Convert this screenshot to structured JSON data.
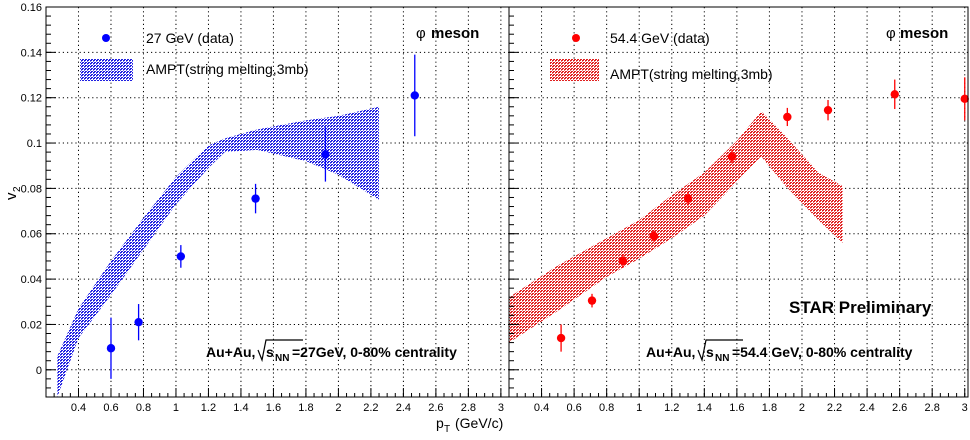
{
  "chart_data": [
    {
      "type": "scatter",
      "panel": "left",
      "ylabel_main": "v",
      "ylabel_sub": "2",
      "xlim": [
        0.2,
        3.05
      ],
      "ylim": [
        -0.012,
        0.16
      ],
      "x_ticks": [
        "0.4",
        "0.6",
        "0.8",
        "1",
        "1.2",
        "1.4",
        "1.6",
        "1.8",
        "2",
        "2.2",
        "2.4",
        "2.6",
        "2.8",
        "3"
      ],
      "y_ticks": [
        "0",
        "0.02",
        "0.04",
        "0.06",
        "0.08",
        "0.1",
        "0.12",
        "0.14",
        "0.16"
      ],
      "grid": true,
      "particle_label": "φ",
      "particle_word": "meson",
      "legend_data": "27 GeV (data)",
      "legend_band": "AMPT(string melting,3mb)",
      "system_label_left": "Au+Au,",
      "system_label_right": "=27GeV, 0-80% centrality",
      "sqrt_sub": "NN",
      "series": [
        {
          "name": "27 GeV (data)",
          "color": "#0000ff",
          "points": [
            {
              "x": 0.6,
              "y": 0.0095,
              "err": 0.0135
            },
            {
              "x": 0.77,
              "y": 0.021,
              "err": 0.008
            },
            {
              "x": 1.03,
              "y": 0.05,
              "err": 0.005
            },
            {
              "x": 1.49,
              "y": 0.0755,
              "err": 0.0065
            },
            {
              "x": 1.92,
              "y": 0.095,
              "err": 0.012
            },
            {
              "x": 2.47,
              "y": 0.121,
              "err": 0.018
            }
          ]
        },
        {
          "name": "AMPT(string melting,3mb)",
          "color": "#0000ff",
          "band_x": [
            0.27,
            0.4,
            0.6,
            0.8,
            1.0,
            1.2,
            1.3,
            1.5,
            1.8,
            2.0,
            2.25
          ],
          "band_upper": [
            0.006,
            0.027,
            0.048,
            0.067,
            0.085,
            0.099,
            0.102,
            0.106,
            0.11,
            0.112,
            0.116
          ],
          "band_lower": [
            -0.012,
            0.014,
            0.033,
            0.053,
            0.073,
            0.089,
            0.096,
            0.097,
            0.092,
            0.086,
            0.075
          ]
        }
      ]
    },
    {
      "type": "scatter",
      "panel": "right",
      "xlim": [
        0.2,
        3.02
      ],
      "ylim": [
        -0.012,
        0.16
      ],
      "x_ticks": [
        "0.4",
        "0.6",
        "0.8",
        "1",
        "1.2",
        "1.4",
        "1.6",
        "1.8",
        "2",
        "2.2",
        "2.4",
        "2.6",
        "2.8",
        "3"
      ],
      "grid": true,
      "xlabel_main": "p",
      "xlabel_sub": "T",
      "xlabel_unit": "(GeV/c)",
      "particle_label": "φ",
      "particle_word": "meson",
      "legend_data": "54.4 GeV (data)",
      "legend_band": "AMPT(string melting,3mb)",
      "preliminary": "STAR Preliminary",
      "system_label_left": "Au+Au,",
      "system_label_right": "=54.4 GeV, 0-80% centrality",
      "sqrt_sub": "NN",
      "series": [
        {
          "name": "54.4 GeV (data)",
          "color": "#ff0000",
          "points": [
            {
              "x": 0.52,
              "y": 0.014,
              "err": 0.006
            },
            {
              "x": 0.71,
              "y": 0.0305,
              "err": 0.003
            },
            {
              "x": 0.9,
              "y": 0.048,
              "err": 0.003
            },
            {
              "x": 1.09,
              "y": 0.059,
              "err": 0.0025
            },
            {
              "x": 1.3,
              "y": 0.0755,
              "err": 0.003
            },
            {
              "x": 1.57,
              "y": 0.094,
              "err": 0.003
            },
            {
              "x": 1.91,
              "y": 0.1115,
              "err": 0.004
            },
            {
              "x": 2.16,
              "y": 0.1145,
              "err": 0.0045
            },
            {
              "x": 2.57,
              "y": 0.1215,
              "err": 0.0065
            },
            {
              "x": 3.0,
              "y": 0.1195,
              "err": 0.0095
            }
          ]
        },
        {
          "name": "AMPT(string melting,3mb)",
          "color": "#ff0000",
          "band_x": [
            0.2,
            0.5,
            0.8,
            1.0,
            1.2,
            1.4,
            1.6,
            1.75,
            1.9,
            2.1,
            2.25
          ],
          "band_upper": [
            0.032,
            0.046,
            0.058,
            0.066,
            0.077,
            0.087,
            0.101,
            0.114,
            0.103,
            0.087,
            0.081
          ],
          "band_lower": [
            0.012,
            0.026,
            0.041,
            0.049,
            0.058,
            0.068,
            0.083,
            0.094,
            0.081,
            0.066,
            0.056
          ]
        }
      ]
    }
  ]
}
